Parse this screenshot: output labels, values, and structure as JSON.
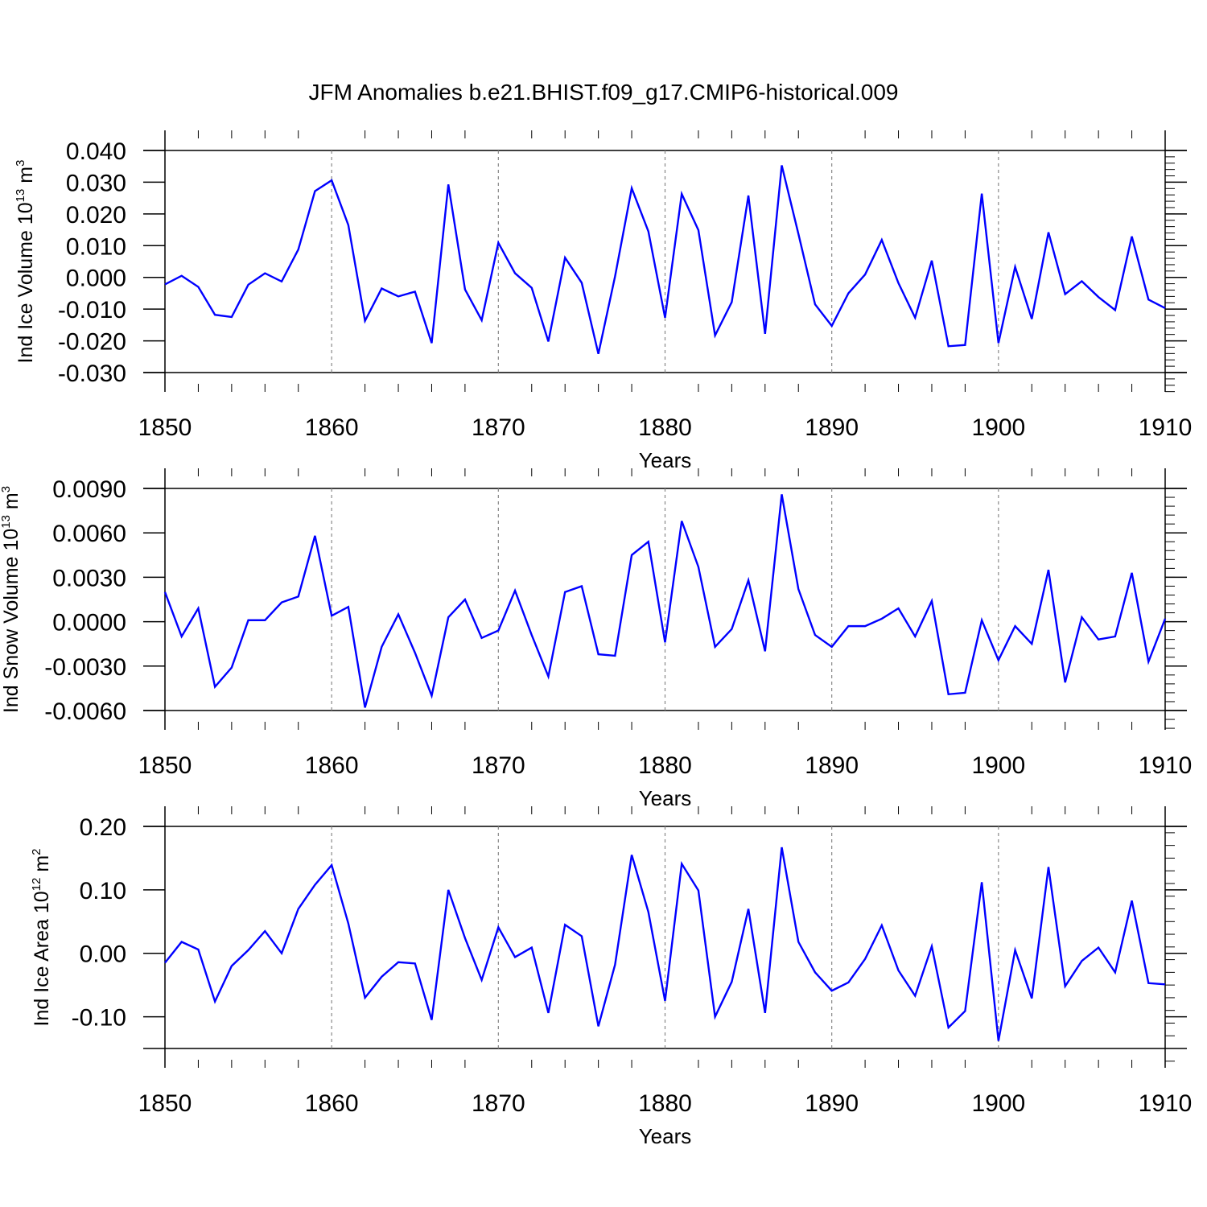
{
  "title": "JFM Anomalies b.e21.BHIST.f09_g17.CMIP6-historical.009",
  "colors": {
    "line": "#0000ff",
    "axis": "#000000",
    "grid": "#888888",
    "background": "#ffffff"
  },
  "chart_data": [
    {
      "type": "line",
      "panel": "ice-volume",
      "ylabel_main": "Ind Ice Volume 10",
      "ylabel_exp": "13",
      "ylabel_unit": " m",
      "ylabel_unit_exp": "3",
      "xlabel": "Years",
      "xlim": [
        1850,
        1910
      ],
      "ylim": [
        -0.03,
        0.04
      ],
      "yticks": [
        -0.03,
        -0.02,
        -0.01,
        0.0,
        0.01,
        0.02,
        0.03,
        0.04
      ],
      "ytick_labels": [
        "-0.030",
        "-0.020",
        "-0.010",
        "0.000",
        "0.010",
        "0.020",
        "0.030",
        "0.040"
      ],
      "xticks": [
        1850,
        1860,
        1870,
        1880,
        1890,
        1900,
        1910
      ],
      "xtick_labels": [
        "1850",
        "1860",
        "1870",
        "1880",
        "1890",
        "1900",
        "1910"
      ],
      "grid_x": [
        1860,
        1870,
        1880,
        1890,
        1900
      ],
      "series": [
        {
          "name": "Ind Ice Volume",
          "x_start": 1850,
          "values": [
            -0.0022,
            0.0005,
            -0.003,
            -0.0118,
            -0.0125,
            -0.0023,
            0.0013,
            -0.0013,
            0.0088,
            0.0272,
            0.0306,
            0.0165,
            -0.0137,
            -0.0035,
            -0.006,
            -0.0045,
            -0.0207,
            0.0293,
            -0.0038,
            -0.0135,
            0.0109,
            0.0013,
            -0.0033,
            -0.0202,
            0.0062,
            -0.0017,
            -0.0241,
            0.0003,
            0.0281,
            0.0145,
            -0.0127,
            0.0263,
            0.0149,
            -0.0183,
            -0.0078,
            0.0258,
            -0.0178,
            0.0353,
            0.0137,
            -0.0085,
            -0.0153,
            -0.005,
            0.0009,
            0.0118,
            -0.0018,
            -0.0127,
            0.0053,
            -0.0217,
            -0.0213,
            0.0264,
            -0.0207,
            0.0033,
            -0.0131,
            0.0142,
            -0.0053,
            -0.0012,
            -0.0062,
            -0.0103,
            0.0129,
            -0.007,
            -0.0097
          ]
        }
      ]
    },
    {
      "type": "line",
      "panel": "snow-volume",
      "ylabel_main": "Ind Snow Volume 10",
      "ylabel_exp": "13",
      "ylabel_unit": " m",
      "ylabel_unit_exp": "3",
      "xlabel": "Years",
      "xlim": [
        1850,
        1910
      ],
      "ylim": [
        -0.006,
        0.009
      ],
      "yticks": [
        -0.006,
        -0.003,
        0.0,
        0.003,
        0.006,
        0.009
      ],
      "ytick_labels": [
        "-0.0060",
        "-0.0030",
        "0.0000",
        "0.0030",
        "0.0060",
        "0.0090"
      ],
      "xticks": [
        1850,
        1860,
        1870,
        1880,
        1890,
        1900,
        1910
      ],
      "xtick_labels": [
        "1850",
        "1860",
        "1870",
        "1880",
        "1890",
        "1900",
        "1910"
      ],
      "grid_x": [
        1860,
        1870,
        1880,
        1890,
        1900
      ],
      "series": [
        {
          "name": "Ind Snow Volume",
          "x_start": 1850,
          "values": [
            0.002,
            -0.001,
            0.0009,
            -0.0044,
            -0.0031,
            0.0001,
            0.0001,
            0.0013,
            0.0017,
            0.0058,
            0.0004,
            0.001,
            -0.0058,
            -0.0017,
            0.0005,
            -0.0021,
            -0.005,
            0.0003,
            0.0015,
            -0.0011,
            -0.0006,
            0.0021,
            -0.0009,
            -0.0037,
            0.002,
            0.0024,
            -0.0022,
            -0.0023,
            0.0045,
            0.0054,
            -0.0014,
            0.0068,
            0.0037,
            -0.0017,
            -0.0005,
            0.0028,
            -0.002,
            0.0086,
            0.0022,
            -0.0009,
            -0.0017,
            -0.0003,
            -0.0003,
            0.0002,
            0.0009,
            -0.001,
            0.0014,
            -0.0049,
            -0.0048,
            0.0001,
            -0.0026,
            -0.0003,
            -0.0015,
            0.0035,
            -0.0041,
            0.0003,
            -0.0012,
            -0.001,
            0.0033,
            -0.0027,
            0.0002
          ]
        }
      ]
    },
    {
      "type": "line",
      "panel": "ice-area",
      "ylabel_main": "Ind Ice Area 10",
      "ylabel_exp": "12",
      "ylabel_unit": " m",
      "ylabel_unit_exp": "2",
      "xlabel": "Years",
      "xlim": [
        1850,
        1910
      ],
      "ylim": [
        -0.15,
        0.2
      ],
      "yticks": [
        -0.1,
        0.0,
        0.1,
        0.2
      ],
      "ytick_labels": [
        "-0.10",
        "0.00",
        "0.10",
        "0.20"
      ],
      "xticks": [
        1850,
        1860,
        1870,
        1880,
        1890,
        1900,
        1910
      ],
      "xtick_labels": [
        "1850",
        "1860",
        "1870",
        "1880",
        "1890",
        "1900",
        "1910"
      ],
      "grid_x": [
        1860,
        1870,
        1880,
        1890,
        1900
      ],
      "series": [
        {
          "name": "Ind Ice Area",
          "x_start": 1850,
          "values": [
            -0.015,
            0.018,
            0.006,
            -0.076,
            -0.02,
            0.005,
            0.035,
            0.0,
            0.07,
            0.108,
            0.139,
            0.047,
            -0.07,
            -0.037,
            -0.014,
            -0.016,
            -0.105,
            0.1,
            0.024,
            -0.042,
            0.041,
            -0.006,
            0.009,
            -0.094,
            0.045,
            0.027,
            -0.115,
            -0.018,
            0.155,
            0.065,
            -0.075,
            0.141,
            0.099,
            -0.1,
            -0.045,
            0.07,
            -0.094,
            0.167,
            0.018,
            -0.03,
            -0.059,
            -0.046,
            -0.009,
            0.044,
            -0.027,
            -0.067,
            0.011,
            -0.117,
            -0.091,
            0.112,
            -0.138,
            0.005,
            -0.071,
            0.136,
            -0.052,
            -0.012,
            0.009,
            -0.03,
            0.083,
            -0.047,
            -0.049
          ]
        }
      ]
    }
  ]
}
